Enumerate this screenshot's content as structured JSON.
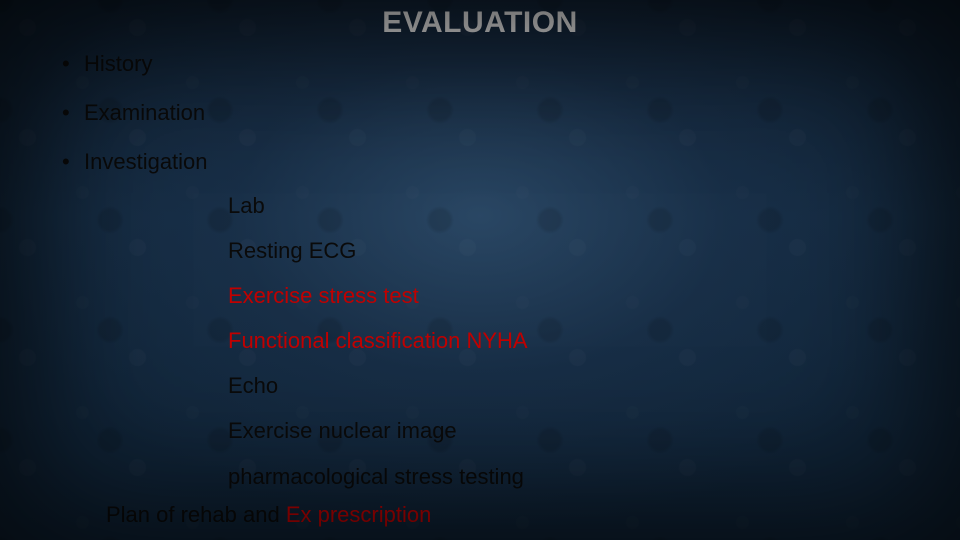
{
  "title": {
    "text": "EVALUATION",
    "color": "#d9d9d9"
  },
  "bullets": [
    {
      "text": "History",
      "color": "#0a0a0a"
    },
    {
      "text": "Examination",
      "color": "#0a0a0a"
    },
    {
      "text": "Investigation",
      "color": "#0a0a0a"
    }
  ],
  "sublist": [
    {
      "text": "Lab",
      "color": "#0a0a0a"
    },
    {
      "text": "Resting ECG",
      "color": "#0a0a0a"
    },
    {
      "text": "Exercise stress test",
      "color": "#c00000"
    },
    {
      "text": "Functional classification NYHA",
      "color": "#c00000"
    },
    {
      "text": "Echo",
      "color": "#0a0a0a"
    },
    {
      "text": "Exercise nuclear image",
      "color": "#0a0a0a"
    },
    {
      "text": "pharmacological stress testing",
      "color": "#0a0a0a"
    }
  ],
  "closing": {
    "prefix": {
      "text": "Plan of rehab and ",
      "color": "#0a0a0a"
    },
    "suffix": {
      "text": "Ex prescription",
      "color": "#c00000"
    }
  }
}
